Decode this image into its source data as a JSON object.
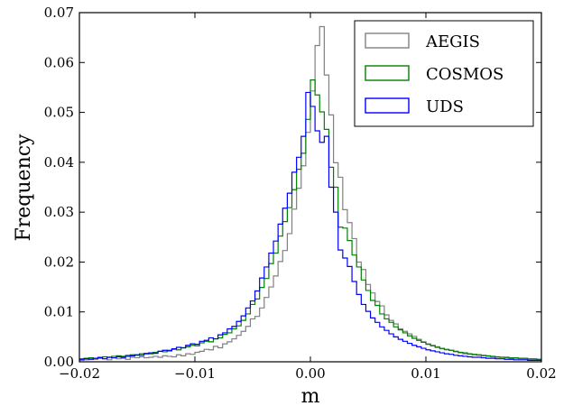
{
  "chart_data": {
    "type": "line",
    "style": "step histogram",
    "xlabel": "m",
    "ylabel": "Frequency",
    "xlim": [
      -0.02,
      0.02
    ],
    "ylim": [
      0.0,
      0.07
    ],
    "xticks": [
      "−0.02",
      "−0.01",
      "0.00",
      "0.01",
      "0.02"
    ],
    "yticks": [
      "0.00",
      "0.01",
      "0.02",
      "0.03",
      "0.04",
      "0.05",
      "0.06",
      "0.07"
    ],
    "legend_position": "top-right",
    "bin_width": 0.0004,
    "bin_start": -0.02,
    "series": [
      {
        "name": "AEGIS",
        "color": "#808080",
        "values": [
          0.0003,
          0.0004,
          0.0006,
          0.0005,
          0.0007,
          0.0006,
          0.0004,
          0.0008,
          0.0006,
          0.0007,
          0.0005,
          0.0009,
          0.0008,
          0.001,
          0.0008,
          0.0009,
          0.0011,
          0.0009,
          0.0012,
          0.0011,
          0.001,
          0.0014,
          0.0012,
          0.0016,
          0.0015,
          0.0019,
          0.0021,
          0.0025,
          0.0024,
          0.0031,
          0.0028,
          0.0036,
          0.004,
          0.0046,
          0.0053,
          0.0061,
          0.0071,
          0.0086,
          0.0091,
          0.0108,
          0.0129,
          0.015,
          0.0172,
          0.0201,
          0.0223,
          0.0257,
          0.0306,
          0.0348,
          0.0393,
          0.046,
          0.0543,
          0.0634,
          0.0672,
          0.0575,
          0.0495,
          0.0399,
          0.037,
          0.0305,
          0.0279,
          0.0247,
          0.02,
          0.0185,
          0.0155,
          0.0138,
          0.0121,
          0.0112,
          0.0094,
          0.0083,
          0.0076,
          0.0066,
          0.0061,
          0.0056,
          0.0051,
          0.0045,
          0.004,
          0.0036,
          0.0033,
          0.003,
          0.0026,
          0.0024,
          0.0023,
          0.002,
          0.0018,
          0.0016,
          0.0015,
          0.0014,
          0.0013,
          0.0012,
          0.0011,
          0.001,
          0.0009,
          0.0009,
          0.0008,
          0.0007,
          0.0007,
          0.0006,
          0.0006,
          0.0005,
          0.0005,
          0.0004
        ]
      },
      {
        "name": "COSMOS",
        "color": "#008000",
        "values": [
          0.0006,
          0.0007,
          0.0008,
          0.0007,
          0.0009,
          0.001,
          0.0009,
          0.0011,
          0.0012,
          0.0011,
          0.0013,
          0.0014,
          0.0013,
          0.0016,
          0.0017,
          0.0016,
          0.0019,
          0.0021,
          0.002,
          0.0023,
          0.0025,
          0.0024,
          0.0028,
          0.003,
          0.0033,
          0.0032,
          0.0038,
          0.0041,
          0.004,
          0.0046,
          0.0048,
          0.0055,
          0.0058,
          0.0066,
          0.0072,
          0.0083,
          0.0096,
          0.0115,
          0.0126,
          0.0149,
          0.0167,
          0.0197,
          0.0218,
          0.0252,
          0.0281,
          0.0309,
          0.0345,
          0.0386,
          0.0418,
          0.0486,
          0.0565,
          0.0535,
          0.0501,
          0.0466,
          0.039,
          0.035,
          0.027,
          0.0268,
          0.0243,
          0.0214,
          0.019,
          0.0164,
          0.0143,
          0.0123,
          0.0113,
          0.0096,
          0.0086,
          0.0079,
          0.007,
          0.0064,
          0.0058,
          0.0052,
          0.0047,
          0.0043,
          0.0039,
          0.0035,
          0.0032,
          0.0029,
          0.0027,
          0.0025,
          0.0023,
          0.0021,
          0.0019,
          0.0018,
          0.0016,
          0.0015,
          0.0014,
          0.0013,
          0.0012,
          0.0011,
          0.001,
          0.0009,
          0.0009,
          0.0008,
          0.0008,
          0.0007,
          0.0007,
          0.0006,
          0.0006,
          0.0005
        ]
      },
      {
        "name": "UDS",
        "color": "#0000ff",
        "values": [
          0.0005,
          0.0006,
          0.0005,
          0.0007,
          0.0008,
          0.0006,
          0.0009,
          0.0008,
          0.001,
          0.0009,
          0.0011,
          0.0012,
          0.0014,
          0.0013,
          0.0016,
          0.0018,
          0.0017,
          0.0021,
          0.0023,
          0.0022,
          0.0026,
          0.0029,
          0.0028,
          0.0033,
          0.0036,
          0.0035,
          0.0041,
          0.0043,
          0.0048,
          0.0046,
          0.0054,
          0.0058,
          0.0066,
          0.0071,
          0.0081,
          0.0092,
          0.0108,
          0.0122,
          0.0142,
          0.0168,
          0.019,
          0.0218,
          0.0242,
          0.0276,
          0.0308,
          0.0338,
          0.038,
          0.041,
          0.0452,
          0.054,
          0.0512,
          0.0463,
          0.044,
          0.0452,
          0.035,
          0.03,
          0.0224,
          0.0208,
          0.0191,
          0.0161,
          0.0135,
          0.0115,
          0.0101,
          0.0088,
          0.0079,
          0.007,
          0.0063,
          0.0056,
          0.005,
          0.0045,
          0.0041,
          0.0037,
          0.0033,
          0.003,
          0.0027,
          0.0024,
          0.0022,
          0.002,
          0.0018,
          0.0016,
          0.0015,
          0.0013,
          0.0012,
          0.0011,
          0.001,
          0.0009,
          0.0009,
          0.0008,
          0.0007,
          0.0007,
          0.0006,
          0.0006,
          0.0005,
          0.0005,
          0.0004,
          0.0004,
          0.0004,
          0.0003,
          0.0003,
          0.0003
        ]
      }
    ]
  }
}
